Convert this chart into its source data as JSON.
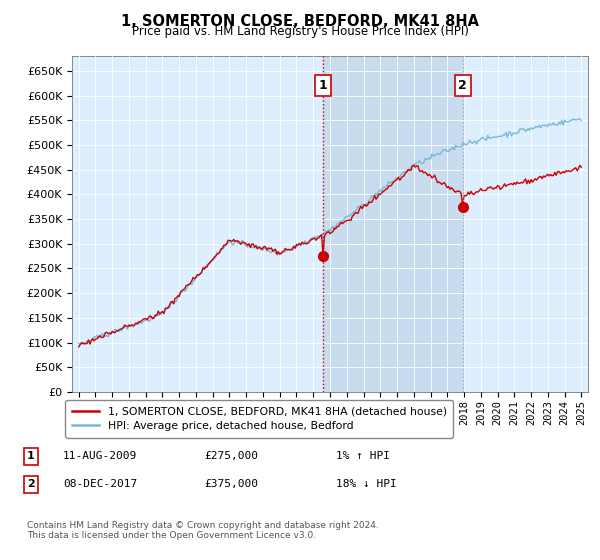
{
  "title": "1, SOMERTON CLOSE, BEDFORD, MK41 8HA",
  "subtitle": "Price paid vs. HM Land Registry's House Price Index (HPI)",
  "ylim": [
    0,
    680000
  ],
  "yticks": [
    0,
    50000,
    100000,
    150000,
    200000,
    250000,
    300000,
    350000,
    400000,
    450000,
    500000,
    550000,
    600000,
    650000
  ],
  "hpi_color": "#7ab8d4",
  "price_color": "#cc0000",
  "vline1_color": "#cc0000",
  "vline2_color": "#aaaaaa",
  "background_color": "#ddeeff",
  "shade_color": "#c8dcf0",
  "point1_year": 2009.6,
  "point1_value": 275000,
  "point2_year": 2017.92,
  "point2_value": 375000,
  "legend_line1": "1, SOMERTON CLOSE, BEDFORD, MK41 8HA (detached house)",
  "legend_line2": "HPI: Average price, detached house, Bedford",
  "footnote": "Contains HM Land Registry data © Crown copyright and database right 2024.\nThis data is licensed under the Open Government Licence v3.0.",
  "xstart": 1995,
  "xend": 2025,
  "sale1_date": "11-AUG-2009",
  "sale1_price": "£275,000",
  "sale1_pct": "1% ↑ HPI",
  "sale2_date": "08-DEC-2017",
  "sale2_price": "£375,000",
  "sale2_pct": "18% ↓ HPI"
}
